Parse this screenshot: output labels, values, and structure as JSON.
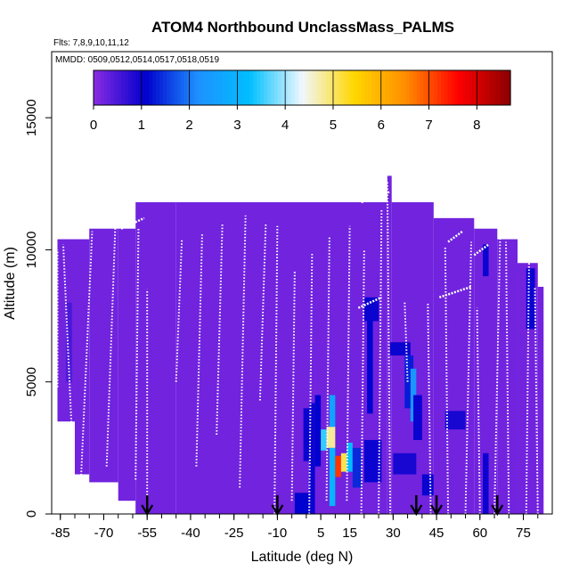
{
  "chart_data": {
    "type": "heatmap",
    "title": "ATOM4 Northbound UnclassMass_PALMS",
    "subtitle_flights": "Flts: 7,8,9,10,11,12",
    "subtitle_dates": "MMDD: 0509,0512,0514,0517,0518,0519",
    "xlabel": "Latitude (deg N)",
    "ylabel": "Altitude (m)",
    "xlim": [
      -88,
      85
    ],
    "ylim": [
      0,
      17500
    ],
    "x_ticks": [
      -85,
      -70,
      -55,
      -40,
      -25,
      -10,
      5,
      15,
      30,
      45,
      60,
      75
    ],
    "x_tick_labels": [
      "-85",
      "-70",
      "-55",
      "-40",
      "-25",
      "-10",
      "5",
      "15",
      "30",
      "45",
      "60",
      "75"
    ],
    "y_ticks": [
      0,
      5000,
      10000,
      15000
    ],
    "y_tick_labels": [
      "0",
      "5000",
      "10000",
      "15000"
    ],
    "colorbar": {
      "min": 0,
      "max": 8.7,
      "ticks": [
        0,
        1,
        2,
        3,
        4,
        5,
        6,
        7,
        8
      ],
      "tick_labels": [
        "0",
        "1",
        "2",
        "3",
        "4",
        "5",
        "6",
        "7",
        "8"
      ],
      "colors": [
        "#8a2be2",
        "#0000cd",
        "#1e90ff",
        "#00bfff",
        "#f0f8ff",
        "#ffd700",
        "#ff8c00",
        "#ff0000",
        "#8b0000"
      ]
    },
    "background_value": 0.2,
    "envelope": [
      {
        "x0": -86,
        "x1": -80,
        "top": 10400,
        "bottom": 3500
      },
      {
        "x0": -80,
        "x1": -75,
        "top": 10400,
        "bottom": 1500
      },
      {
        "x0": -75,
        "x1": -65,
        "top": 10800,
        "bottom": 1200
      },
      {
        "x0": -65,
        "x1": -59,
        "top": 10800,
        "bottom": 500
      },
      {
        "x0": -59,
        "x1": -45,
        "top": 11800,
        "bottom": 0
      },
      {
        "x0": -45,
        "x1": 28,
        "top": 11800,
        "bottom": 0
      },
      {
        "x0": 28,
        "x1": 29.5,
        "top": 12800,
        "bottom": 0
      },
      {
        "x0": 29.5,
        "x1": 44,
        "top": 11800,
        "bottom": 0
      },
      {
        "x0": 44,
        "x1": 58,
        "top": 11200,
        "bottom": 0
      },
      {
        "x0": 58,
        "x1": 66,
        "top": 10800,
        "bottom": 0
      },
      {
        "x0": 66,
        "x1": 73,
        "top": 10400,
        "bottom": 0
      },
      {
        "x0": 73,
        "x1": 80,
        "top": 9500,
        "bottom": 0
      },
      {
        "x0": 80,
        "x1": 82,
        "top": 8600,
        "bottom": 0
      }
    ],
    "hotspots": [
      {
        "x0": 20,
        "x1": 25,
        "y0": 7300,
        "y1": 8200,
        "value": 1.0
      },
      {
        "x0": 21,
        "x1": 23,
        "y0": 3800,
        "y1": 7300,
        "value": 1.1
      },
      {
        "x0": 29,
        "x1": 36,
        "y0": 6000,
        "y1": 6500,
        "value": 1.0
      },
      {
        "x0": 34,
        "x1": 37,
        "y0": 4000,
        "y1": 6000,
        "value": 1.3
      },
      {
        "x0": 36,
        "x1": 38,
        "y0": 3500,
        "y1": 5500,
        "value": 2.3
      },
      {
        "x0": 37,
        "x1": 40,
        "y0": 2800,
        "y1": 4500,
        "value": 1.0
      },
      {
        "x0": 61,
        "x1": 63,
        "y0": 9000,
        "y1": 10200,
        "value": 1.0
      },
      {
        "x0": 76,
        "x1": 79,
        "y0": 7000,
        "y1": 9300,
        "value": 1.0
      },
      {
        "x0": 1,
        "x1": 3,
        "y0": 0,
        "y1": 4200,
        "value": 1.0
      },
      {
        "x0": 3,
        "x1": 5,
        "y0": 1800,
        "y1": 4500,
        "value": 1.1
      },
      {
        "x0": 5,
        "x1": 7,
        "y0": 2400,
        "y1": 3200,
        "value": 3.5
      },
      {
        "x0": 7,
        "x1": 10,
        "y0": 2500,
        "y1": 3300,
        "value": 4.8
      },
      {
        "x0": 8,
        "x1": 10,
        "y0": 3300,
        "y1": 4500,
        "value": 2.6
      },
      {
        "x0": 8,
        "x1": 10,
        "y0": 300,
        "y1": 2500,
        "value": 3.0
      },
      {
        "x0": 10,
        "x1": 12,
        "y0": 1400,
        "y1": 2200,
        "value": 7.2
      },
      {
        "x0": 12,
        "x1": 14,
        "y0": 1600,
        "y1": 2300,
        "value": 5.1
      },
      {
        "x0": 14,
        "x1": 16,
        "y0": 1600,
        "y1": 2700,
        "value": 3.2
      },
      {
        "x0": 16,
        "x1": 19,
        "y0": 1000,
        "y1": 2500,
        "value": 1.4
      },
      {
        "x0": -4,
        "x1": 1,
        "y0": 0,
        "y1": 800,
        "value": 1.1
      },
      {
        "x0": 20,
        "x1": 26,
        "y0": 1200,
        "y1": 2800,
        "value": 1.0
      },
      {
        "x0": 30,
        "x1": 38,
        "y0": 1500,
        "y1": 2300,
        "value": 0.9
      },
      {
        "x0": 40,
        "x1": 44,
        "y0": 700,
        "y1": 1500,
        "value": 1.0
      },
      {
        "x0": 61,
        "x1": 63,
        "y0": 0,
        "y1": 2300,
        "value": 1.0
      },
      {
        "x0": 48,
        "x1": 55,
        "y0": 3200,
        "y1": 3900,
        "value": 0.9
      },
      {
        "x0": -83,
        "x1": -81,
        "y0": 5000,
        "y1": 8000,
        "value": 0.5
      },
      {
        "x0": -1,
        "x1": 1,
        "y0": 2000,
        "y1": 4000,
        "value": 1.0
      }
    ],
    "profiles": [
      {
        "x_bottom": -86,
        "x_top": -86,
        "y_bottom": 4800,
        "y_top": 10000
      },
      {
        "x_bottom": -81,
        "x_top": -84,
        "y_bottom": 3000,
        "y_top": 10200
      },
      {
        "x_bottom": -78,
        "x_top": -74,
        "y_bottom": 1000,
        "y_top": 10700
      },
      {
        "x_bottom": -69,
        "x_top": -66,
        "y_bottom": 1800,
        "y_top": 10900
      },
      {
        "x_bottom": -59,
        "x_top": -58,
        "y_bottom": 1300,
        "y_top": 10800
      },
      {
        "x_bottom": -55,
        "x_top": -55,
        "y_bottom": 0,
        "y_top": 8500
      },
      {
        "x_bottom": -45,
        "x_top": -43,
        "y_bottom": 5000,
        "y_top": 10400
      },
      {
        "x_bottom": -38,
        "x_top": -36,
        "y_bottom": 1800,
        "y_top": 10600
      },
      {
        "x_bottom": -31,
        "x_top": -29,
        "y_bottom": 3000,
        "y_top": 11000
      },
      {
        "x_bottom": -23,
        "x_top": -21,
        "y_bottom": 1000,
        "y_top": 11300
      },
      {
        "x_bottom": -16,
        "x_top": -14,
        "y_bottom": 4300,
        "y_top": 11000
      },
      {
        "x_bottom": -11,
        "x_top": -10,
        "y_bottom": 0,
        "y_top": 10900
      },
      {
        "x_bottom": -5,
        "x_top": -4,
        "y_bottom": 500,
        "y_top": 9200
      },
      {
        "x_bottom": 1,
        "x_top": 2,
        "y_bottom": 0,
        "y_top": 9900
      },
      {
        "x_bottom": 7,
        "x_top": 8,
        "y_bottom": 500,
        "y_top": 10500
      },
      {
        "x_bottom": 14,
        "x_top": 15,
        "y_bottom": 500,
        "y_top": 10900
      },
      {
        "x_bottom": 19,
        "x_top": 20,
        "y_bottom": 0,
        "y_top": 10000
      },
      {
        "x_bottom": 25,
        "x_top": 26,
        "y_bottom": 0,
        "y_top": 11500
      },
      {
        "x_bottom": 29,
        "x_top": 28,
        "y_bottom": 0,
        "y_top": 12600
      },
      {
        "x_bottom": 35,
        "x_top": 34,
        "y_bottom": 5000,
        "y_top": 8000
      },
      {
        "x_bottom": 43,
        "x_top": 42,
        "y_bottom": 0,
        "y_top": 8000
      },
      {
        "x_bottom": 49,
        "x_top": 48,
        "y_bottom": 0,
        "y_top": 10100
      },
      {
        "x_bottom": 55,
        "x_top": 57,
        "y_bottom": 0,
        "y_top": 10300
      },
      {
        "x_bottom": 60,
        "x_top": 59,
        "y_bottom": 0,
        "y_top": 7800
      },
      {
        "x_bottom": 65,
        "x_top": 67,
        "y_bottom": 0,
        "y_top": 10600
      },
      {
        "x_bottom": 70,
        "x_top": 69,
        "y_bottom": 0,
        "y_top": 10300
      },
      {
        "x_bottom": 76,
        "x_top": 77,
        "y_bottom": 0,
        "y_top": 9800
      },
      {
        "x_bottom": 80,
        "x_top": 79,
        "y_bottom": 0,
        "y_top": 8600
      }
    ],
    "level_legs": [
      {
        "x0": -64,
        "x1": -56,
        "y": 10800
      },
      {
        "x0": 19,
        "x1": 29,
        "y": 11800
      },
      {
        "x0": 49,
        "x1": 54,
        "y": 10300
      },
      {
        "x0": 58,
        "x1": 63,
        "y": 9800
      },
      {
        "x0": 18,
        "x1": 26,
        "y": 7800
      },
      {
        "x0": 46,
        "x1": 57,
        "y": 8200
      },
      {
        "x0": 70,
        "x1": 78,
        "y": 10600
      }
    ],
    "arrows_x": [
      -55,
      -10,
      38,
      45,
      66
    ]
  }
}
